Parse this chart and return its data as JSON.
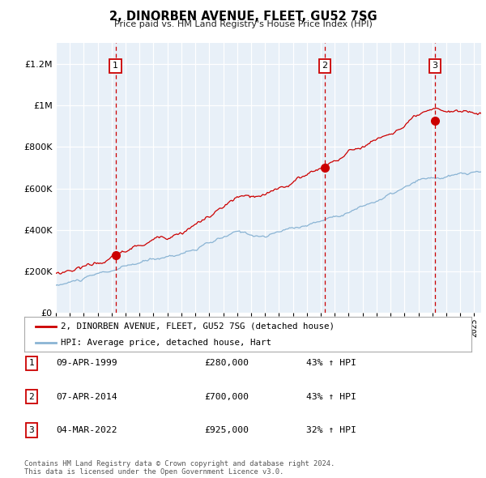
{
  "title": "2, DINORBEN AVENUE, FLEET, GU52 7SG",
  "subtitle": "Price paid vs. HM Land Registry's House Price Index (HPI)",
  "plot_bg_color": "#e8f0f8",
  "red_line_color": "#cc0000",
  "blue_line_color": "#8ab4d4",
  "red_dot_color": "#cc0000",
  "vline_color": "#cc0000",
  "grid_color": "#ffffff",
  "ylim": [
    0,
    1300000
  ],
  "yticks": [
    0,
    200000,
    400000,
    600000,
    800000,
    1000000,
    1200000
  ],
  "sale_dates": [
    1999.27,
    2014.27,
    2022.17
  ],
  "sale_prices": [
    280000,
    700000,
    925000
  ],
  "sale_labels": [
    "1",
    "2",
    "3"
  ],
  "legend_red": "2, DINORBEN AVENUE, FLEET, GU52 7SG (detached house)",
  "legend_blue": "HPI: Average price, detached house, Hart",
  "table_rows": [
    [
      "1",
      "09-APR-1999",
      "£280,000",
      "43% ↑ HPI"
    ],
    [
      "2",
      "07-APR-2014",
      "£700,000",
      "43% ↑ HPI"
    ],
    [
      "3",
      "04-MAR-2022",
      "£925,000",
      "32% ↑ HPI"
    ]
  ],
  "footnote": "Contains HM Land Registry data © Crown copyright and database right 2024.\nThis data is licensed under the Open Government Licence v3.0.",
  "start_year": 1995.0,
  "end_year": 2025.5
}
